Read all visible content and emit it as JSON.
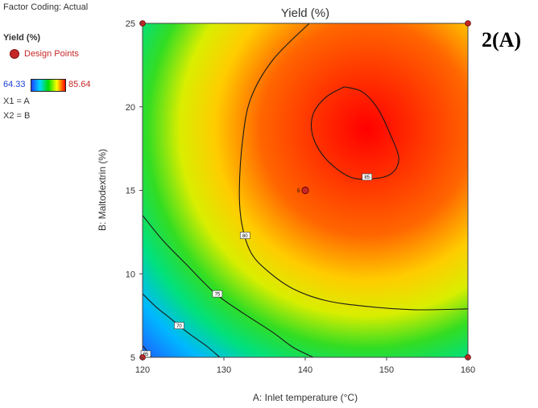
{
  "side_panel": {
    "factor_coding": "Factor Coding: Actual",
    "response_title": "Yield (%)",
    "legend_label": "Design Points",
    "colorbar_min": "64.33",
    "colorbar_max": "85.64",
    "x1_map": "X1 = A",
    "x2_map": "X2 = B"
  },
  "panel_tag": "2(A)",
  "colors": {
    "design_point": "#c62828",
    "contour_line": "#1a1a1a"
  },
  "chart_data": {
    "type": "heatmap",
    "subtype": "contour",
    "title": "Yield (%)",
    "xlabel": "A: Inlet temperature (°C)",
    "ylabel": "B: Maltodextrin (%)",
    "xlim": [
      120,
      160
    ],
    "ylim": [
      5,
      25
    ],
    "xticks": [
      120,
      130,
      140,
      150,
      160
    ],
    "yticks": [
      5,
      10,
      15,
      20,
      25
    ],
    "color_range": [
      64.33,
      85.64
    ],
    "grid": false,
    "contour_labels": [
      "65",
      "70",
      "75",
      "80",
      "85"
    ],
    "design_points": [
      {
        "x": 120,
        "y": 5
      },
      {
        "x": 160,
        "y": 5
      },
      {
        "x": 120,
        "y": 25
      },
      {
        "x": 160,
        "y": 25
      },
      {
        "x": 140,
        "y": 15
      }
    ],
    "center_point_label": "5",
    "contours": [
      {
        "level": 85,
        "label_at": {
          "x": 147.6,
          "y": 15.8
        },
        "points": [
          [
            144.8,
            21.2
          ],
          [
            147,
            20.9
          ],
          [
            148.9,
            19.9
          ],
          [
            150.5,
            18.3
          ],
          [
            151.5,
            16.9
          ],
          [
            150.6,
            16.0
          ],
          [
            148.4,
            15.7
          ],
          [
            145.5,
            15.8
          ],
          [
            142.5,
            16.9
          ],
          [
            140.9,
            18.3
          ],
          [
            141,
            19.6
          ],
          [
            142.6,
            20.6
          ],
          [
            144.8,
            21.2
          ]
        ]
      },
      {
        "level": 80,
        "label_at": {
          "x": 132.6,
          "y": 12.3
        },
        "points": [
          [
            140.5,
            25
          ],
          [
            136,
            22.8
          ],
          [
            133.3,
            20.5
          ],
          [
            132.3,
            18
          ],
          [
            131.9,
            15
          ],
          [
            132.2,
            13
          ],
          [
            133.3,
            11.3
          ],
          [
            135.3,
            10.2
          ],
          [
            138.5,
            9.1
          ],
          [
            142.5,
            8.4
          ],
          [
            147.5,
            8.05
          ],
          [
            153.5,
            7.85
          ],
          [
            160,
            7.9
          ]
        ]
      },
      {
        "level": 75,
        "label_at": {
          "x": 129.2,
          "y": 8.8
        },
        "points": [
          [
            120,
            13.5
          ],
          [
            122.5,
            12
          ],
          [
            125.5,
            10.5
          ],
          [
            129,
            8.8
          ],
          [
            132.5,
            7.6
          ],
          [
            136,
            6.5
          ],
          [
            138.5,
            5.6
          ],
          [
            141,
            5
          ]
        ]
      },
      {
        "level": 70,
        "label_at": {
          "x": 124.5,
          "y": 6.9
        },
        "points": [
          [
            120,
            8.8
          ],
          [
            121.7,
            8
          ],
          [
            123.5,
            7.3
          ],
          [
            125.5,
            6.5
          ],
          [
            127.8,
            5.7
          ],
          [
            129.5,
            5
          ]
        ]
      },
      {
        "level": 65,
        "label_at": {
          "x": 120.4,
          "y": 5.2
        },
        "points": [
          [
            120,
            5.7
          ],
          [
            120.5,
            5.4
          ],
          [
            121.1,
            5
          ]
        ]
      }
    ],
    "optimum": {
      "x": 146.5,
      "y": 18.6,
      "value": 85.64
    },
    "minimum": {
      "x": 120,
      "y": 5,
      "value": 64.33
    }
  }
}
